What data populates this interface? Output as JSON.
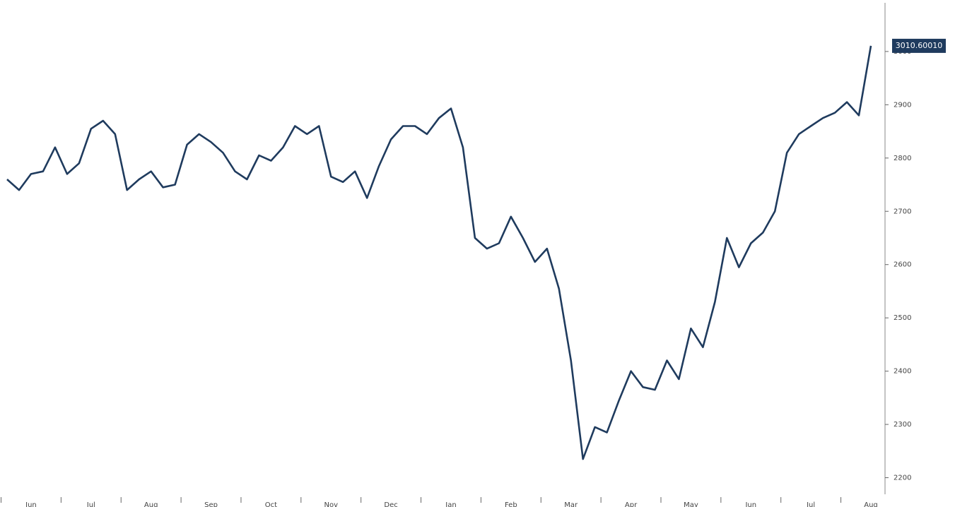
{
  "chart_data": {
    "type": "line",
    "categories": [
      null,
      null,
      "Jun",
      null,
      null,
      null,
      null,
      "Jul",
      null,
      null,
      null,
      null,
      "Aug",
      null,
      null,
      null,
      null,
      "Sep",
      null,
      null,
      null,
      null,
      "Oct",
      null,
      null,
      null,
      null,
      "Nov",
      null,
      null,
      null,
      null,
      "Dec",
      null,
      null,
      null,
      null,
      "Jan",
      null,
      null,
      null,
      null,
      "Feb",
      null,
      null,
      null,
      null,
      "Mar",
      null,
      null,
      null,
      null,
      "Apr",
      null,
      null,
      null,
      null,
      "May",
      null,
      null,
      null,
      null,
      "Jun",
      null,
      null,
      null,
      null,
      "Jul",
      null,
      null,
      null,
      null,
      "Aug"
    ],
    "series": [
      {
        "color": "#1f3b5e",
        "values": [
          2760,
          2740,
          2770,
          2775,
          2820,
          2770,
          2790,
          2855,
          2870,
          2845,
          2740,
          2760,
          2775,
          2745,
          2750,
          2825,
          2845,
          2830,
          2810,
          2775,
          2760,
          2805,
          2795,
          2820,
          2860,
          2845,
          2860,
          2765,
          2755,
          2775,
          2725,
          2785,
          2835,
          2860,
          2860,
          2845,
          2875,
          2893,
          2820,
          2650,
          2630,
          2640,
          2690,
          2650,
          2605,
          2630,
          2555,
          2420,
          2235,
          2295,
          2285,
          2345,
          2400,
          2370,
          2365,
          2420,
          2385,
          2480,
          2445,
          2530,
          2650,
          2595,
          2640,
          2660,
          2700,
          2810,
          2845,
          2860,
          2875,
          2885,
          2905,
          2880,
          3010.6001
        ],
        "value_labels": [
          null,
          null,
          null,
          null,
          null,
          null,
          null,
          null,
          null,
          null,
          null,
          null,
          null,
          null,
          null,
          null,
          null,
          null,
          null,
          null,
          null,
          null,
          null,
          null,
          null,
          null,
          null,
          null,
          null,
          null,
          null,
          null,
          null,
          null,
          null,
          null,
          null,
          null,
          null,
          null,
          null,
          null,
          null,
          null,
          null,
          null,
          null,
          null,
          null,
          null,
          null,
          null,
          null,
          null,
          null,
          null,
          null,
          null,
          null,
          null,
          null,
          null,
          null,
          null,
          null,
          null,
          null,
          null,
          null,
          null,
          null,
          null,
          "3010.60010"
        ]
      }
    ],
    "ylim": [
      2145,
      3090
    ],
    "yticks": [
      2200,
      2300,
      2400,
      2500,
      2600,
      2700,
      2800,
      2900,
      3000
    ],
    "y_axis_side": "right",
    "grid": false
  }
}
